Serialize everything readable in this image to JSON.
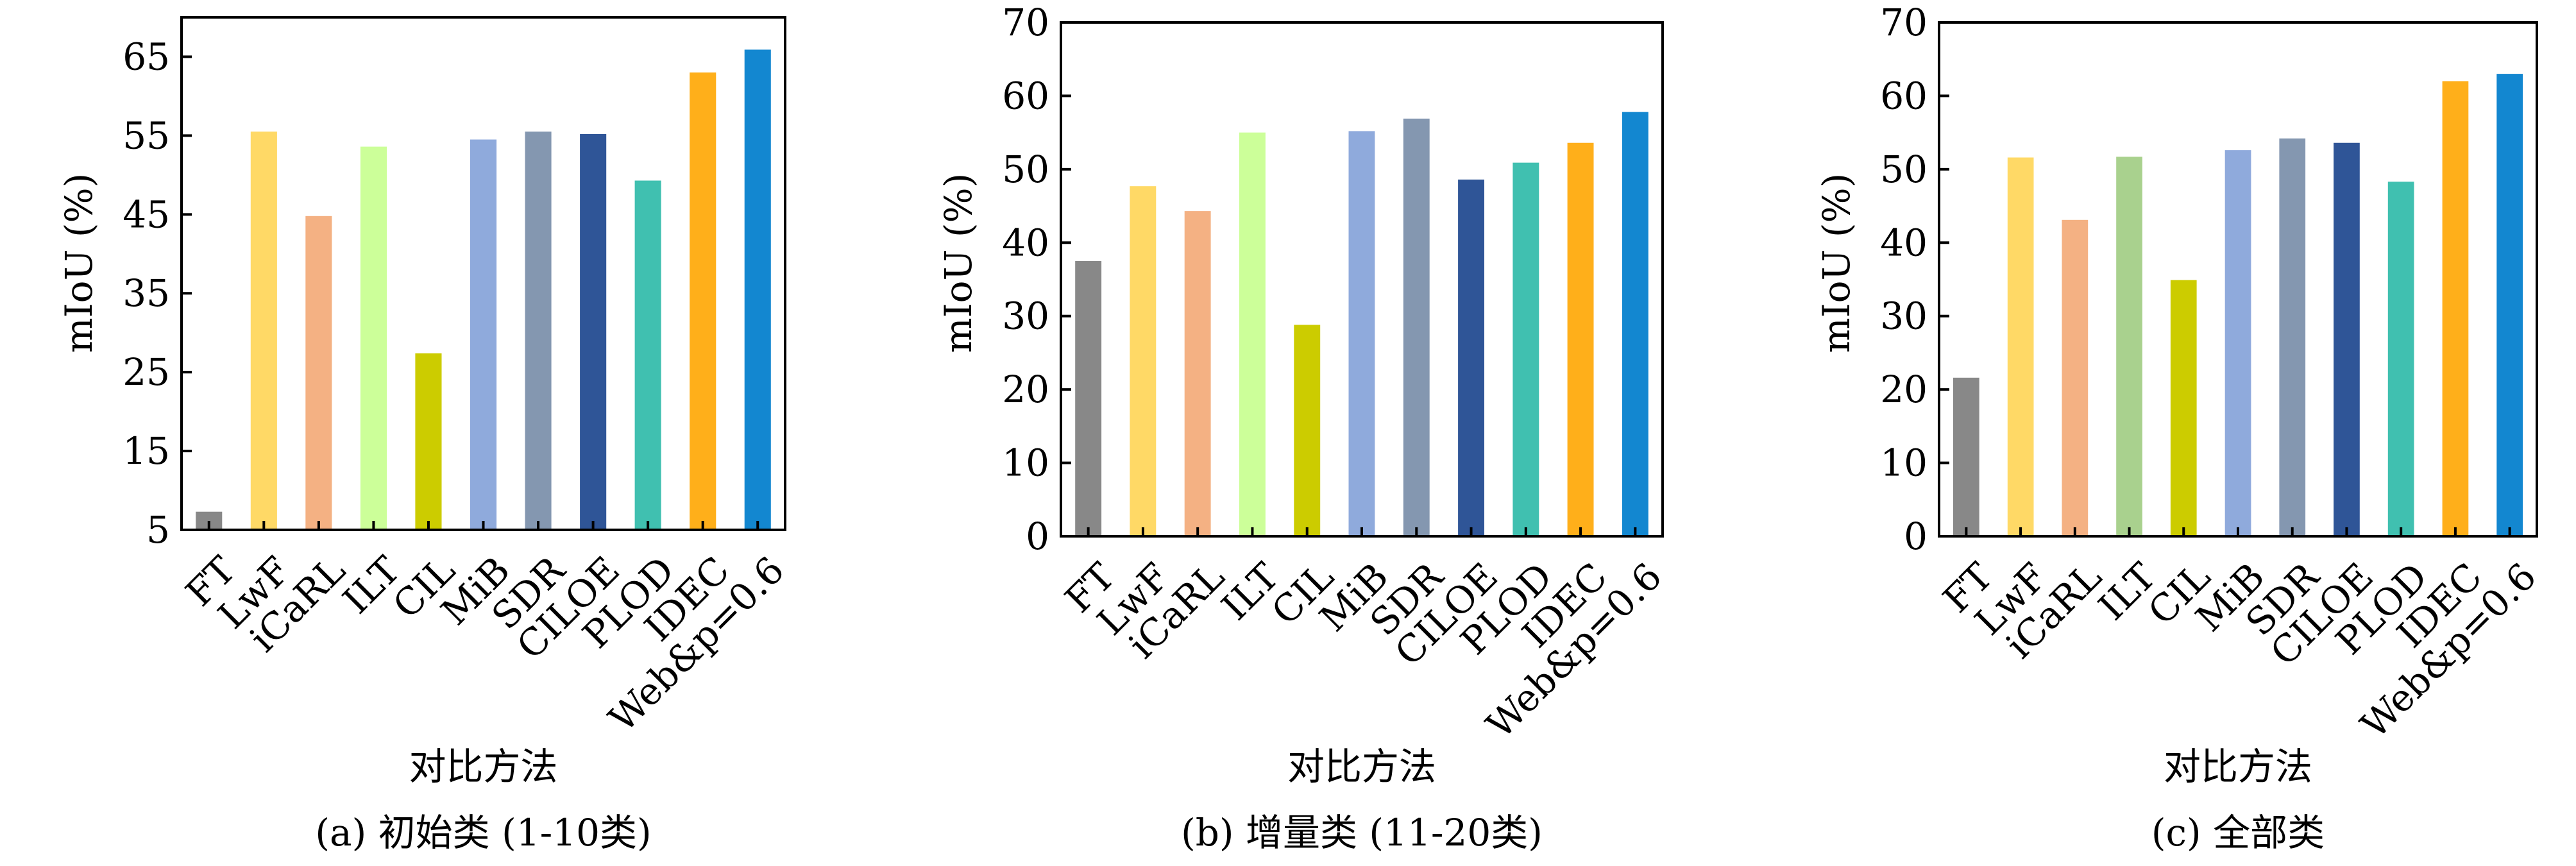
{
  "chart_data": [
    {
      "type": "bar",
      "caption": "(a) 初始类 (1-10类)",
      "xlabel": "对比方法",
      "ylabel": "mIoU (%)",
      "ylim": [
        5,
        70
      ],
      "yticks": [
        5,
        15,
        25,
        35,
        45,
        55,
        65
      ],
      "categories": [
        "FT",
        "LwF",
        "iCaRL",
        "ILT",
        "CIL",
        "MiB",
        "SDR",
        "CILOE",
        "PLOD",
        "IDEC",
        "Web&p=0.6"
      ],
      "values": [
        7.3,
        55.5,
        44.8,
        53.6,
        27.4,
        54.5,
        55.5,
        55.2,
        49.3,
        63.0,
        65.9
      ],
      "colors": [
        "#888888",
        "#FFD966",
        "#F4B183",
        "#CCFF99",
        "#CCCC00",
        "#8FAADC",
        "#8497B0",
        "#2F5597",
        "#40C0B0",
        "#FFAF1A",
        "#1387D0"
      ]
    },
    {
      "type": "bar",
      "caption": "(b) 增量类 (11-20类)",
      "xlabel": "对比方法",
      "ylabel": "mIoU (%)",
      "ylim": [
        0,
        70
      ],
      "yticks": [
        0,
        10,
        20,
        30,
        40,
        50,
        60,
        70
      ],
      "categories": [
        "FT",
        "LwF",
        "iCaRL",
        "ILT",
        "CIL",
        "MiB",
        "SDR",
        "CILOE",
        "PLOD",
        "IDEC",
        "Web&p=0.6"
      ],
      "values": [
        37.5,
        47.7,
        44.3,
        55.0,
        28.8,
        55.2,
        56.9,
        48.6,
        50.9,
        53.6,
        57.8
      ],
      "colors": [
        "#888888",
        "#FFD966",
        "#F4B183",
        "#CCFF99",
        "#CCCC00",
        "#8FAADC",
        "#8497B0",
        "#2F5597",
        "#40C0B0",
        "#FFAF1A",
        "#1387D0"
      ]
    },
    {
      "type": "bar",
      "caption": "(c) 全部类",
      "xlabel": "对比方法",
      "ylabel": "mIoU (%)",
      "ylim": [
        0,
        70
      ],
      "yticks": [
        0,
        10,
        20,
        30,
        40,
        50,
        60,
        70
      ],
      "categories": [
        "FT",
        "LwF",
        "iCaRL",
        "ILT",
        "CIL",
        "MiB",
        "SDR",
        "CILOE",
        "PLOD",
        "IDEC",
        "Web&p=0.6"
      ],
      "values": [
        21.6,
        51.6,
        43.1,
        51.7,
        34.9,
        52.6,
        54.2,
        53.6,
        48.3,
        62.0,
        63.0
      ],
      "colors": [
        "#888888",
        "#FFD966",
        "#F4B183",
        "#A9D18E",
        "#CCCC00",
        "#8FAADC",
        "#8497B0",
        "#2F5597",
        "#40C0B0",
        "#FFAF1A",
        "#1387D0"
      ]
    }
  ]
}
